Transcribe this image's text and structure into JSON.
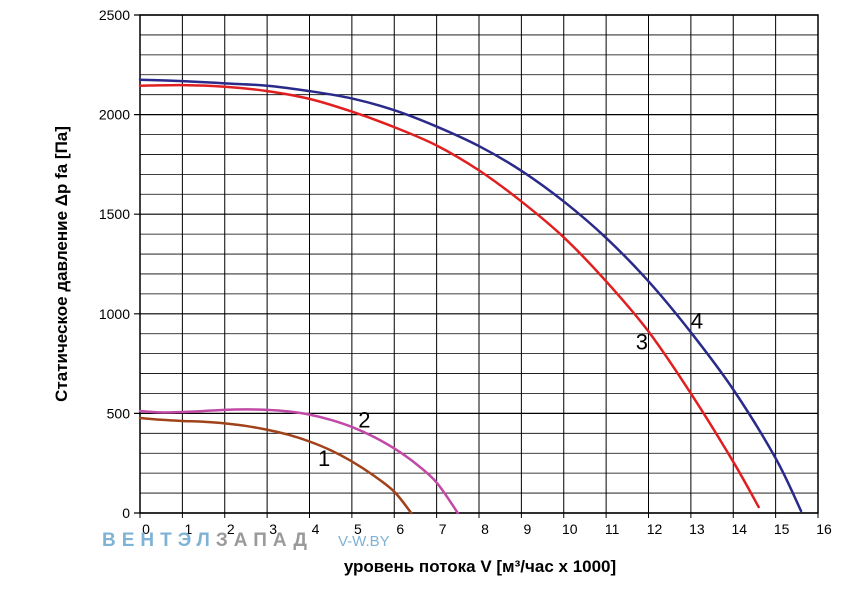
{
  "chart_data": {
    "type": "line",
    "xlabel": "уровень потока  V [м³/час x 1000]",
    "ylabel": "Статическое давление  Δp fa [Па]",
    "xlim": [
      0,
      16
    ],
    "ylim": [
      0,
      2500
    ],
    "xticks": [
      "0",
      "1",
      "2",
      "3",
      "4",
      "5",
      "6",
      "7",
      "8",
      "9",
      "10",
      "11",
      "12",
      "13",
      "14",
      "15",
      "16"
    ],
    "yticks": [
      "0",
      "500",
      "1000",
      "1500",
      "2000",
      "2500"
    ],
    "grid": true,
    "series": [
      {
        "name": "1",
        "color": "#a0421a",
        "x": [
          0,
          0.5,
          1,
          1.5,
          2,
          2.5,
          3,
          3.5,
          4,
          4.5,
          5,
          5.5,
          6,
          6.4
        ],
        "y": [
          477,
          468,
          462,
          458,
          450,
          437,
          418,
          393,
          359,
          315,
          259,
          190,
          107,
          0
        ]
      },
      {
        "name": "2",
        "color": "#c04aa6",
        "x": [
          0,
          0.5,
          1,
          1.5,
          2,
          2.5,
          3,
          3.5,
          4,
          4.5,
          5,
          5.5,
          6,
          6.5,
          7,
          7.5
        ],
        "y": [
          512,
          505,
          507,
          512,
          518,
          520,
          518,
          510,
          494,
          468,
          432,
          384,
          324,
          249,
          153,
          0
        ]
      },
      {
        "name": "3",
        "color": "#e02020",
        "x": [
          0,
          1,
          2,
          3,
          4,
          5,
          6,
          7,
          8,
          9,
          10,
          11,
          12,
          13,
          14,
          14.6
        ],
        "y": [
          2145,
          2148,
          2140,
          2118,
          2079,
          2015,
          1937,
          1845,
          1720,
          1564,
          1384,
          1163,
          911,
          600,
          257,
          30
        ]
      },
      {
        "name": "4",
        "color": "#2a2a8a",
        "x": [
          0,
          1,
          2,
          3,
          4,
          5,
          6,
          7,
          8,
          9,
          10,
          11,
          12,
          13,
          14,
          15,
          15.6
        ],
        "y": [
          2175,
          2168,
          2157,
          2145,
          2118,
          2081,
          2022,
          1940,
          1842,
          1718,
          1564,
          1381,
          1163,
          907,
          620,
          275,
          10
        ]
      }
    ],
    "labels": [
      {
        "text": "1",
        "x": 4.2,
        "y": 235
      },
      {
        "text": "2",
        "x": 5.15,
        "y": 430
      },
      {
        "text": "3",
        "x": 11.7,
        "y": 820
      },
      {
        "text": "4",
        "x": 13.0,
        "y": 925
      }
    ]
  },
  "watermark": {
    "brand_part1": "ВЕНТЭЛ",
    "brand_part2": "ЗАПАД",
    "site": "V-W.BY",
    "color1": "#7fb3d5",
    "color2": "#9a9a9a"
  }
}
